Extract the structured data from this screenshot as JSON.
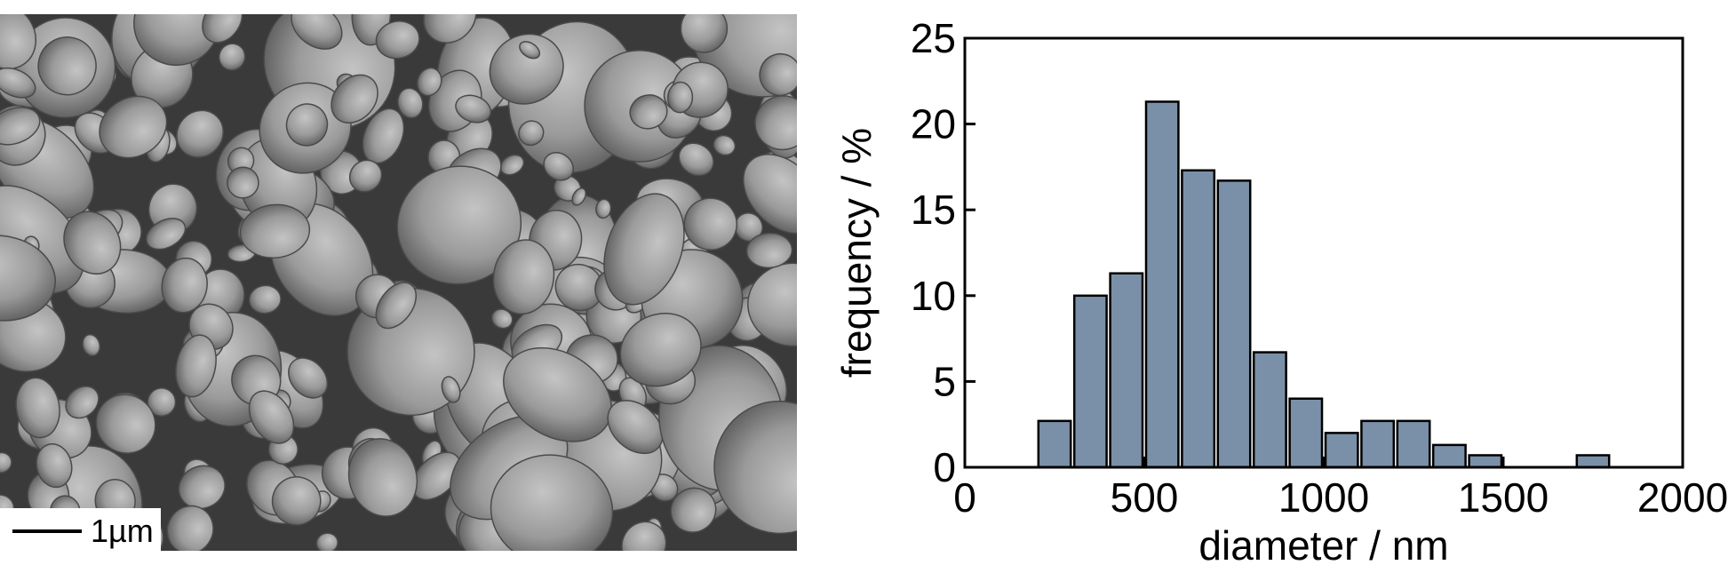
{
  "micrograph": {
    "scale_bar_label": "1µm"
  },
  "chart_data": {
    "type": "bar",
    "xlabel": "diameter / nm",
    "ylabel": "frequency / %",
    "xlim": [
      0,
      2000
    ],
    "ylim": [
      0,
      25
    ],
    "xticks": [
      0,
      500,
      1000,
      1500,
      2000
    ],
    "yticks": [
      0,
      5,
      10,
      15,
      20,
      25
    ],
    "bin_width": 100,
    "bins": [
      {
        "center": 250,
        "value": 2.7
      },
      {
        "center": 350,
        "value": 10.0
      },
      {
        "center": 450,
        "value": 11.3
      },
      {
        "center": 550,
        "value": 21.3
      },
      {
        "center": 650,
        "value": 17.3
      },
      {
        "center": 750,
        "value": 16.7
      },
      {
        "center": 850,
        "value": 6.7
      },
      {
        "center": 950,
        "value": 4.0
      },
      {
        "center": 1050,
        "value": 2.0
      },
      {
        "center": 1150,
        "value": 2.7
      },
      {
        "center": 1250,
        "value": 2.7
      },
      {
        "center": 1350,
        "value": 1.3
      },
      {
        "center": 1450,
        "value": 0.7
      },
      {
        "center": 1750,
        "value": 0.7
      }
    ],
    "bar_color": "#7a90a8",
    "grid": false
  }
}
